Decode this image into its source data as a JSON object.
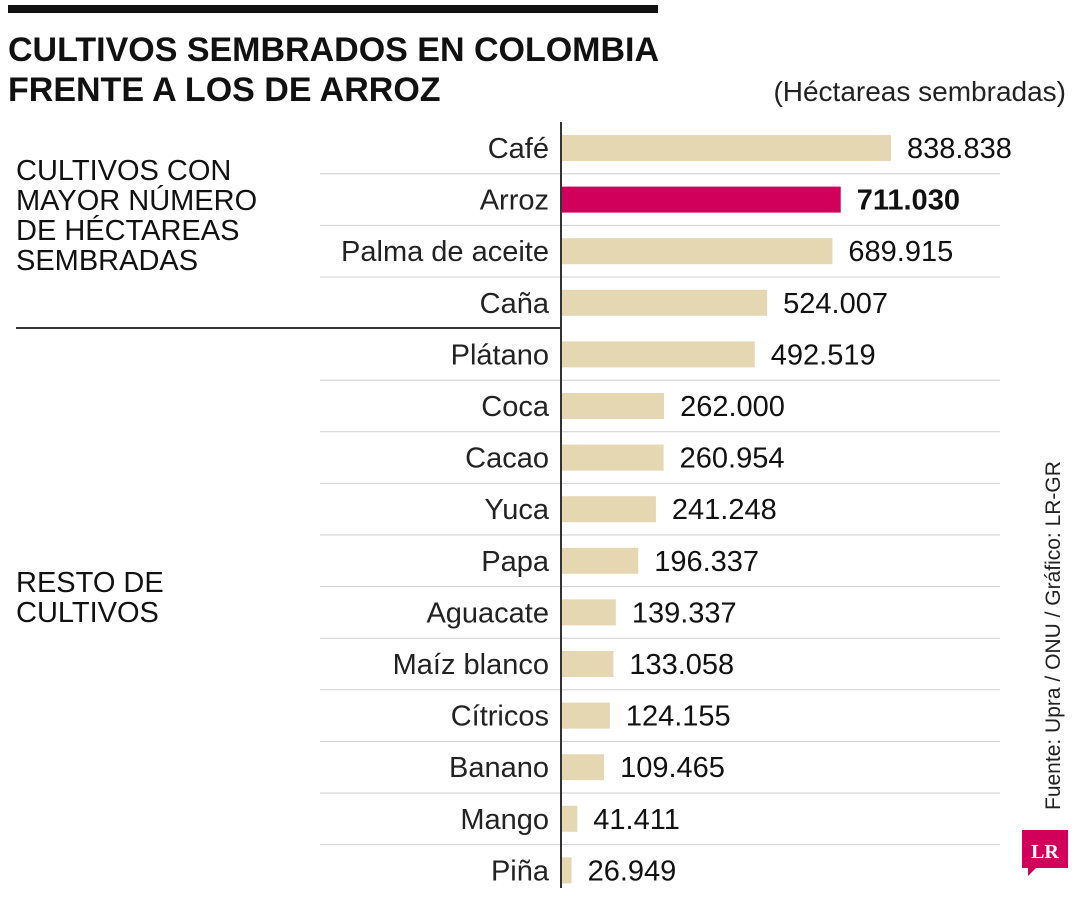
{
  "header": {
    "title_line1": "CULTIVOS SEMBRADOS EN COLOMBIA",
    "title_line2": "FRENTE A LOS DE ARROZ",
    "units": "(Héctareas sembradas)"
  },
  "groups": {
    "top_label": "CULTIVOS CON\nMAYOR NÚMERO\nDE HÉCTAREAS\nSEMBRADAS",
    "rest_label": "RESTO DE\nCULTIVOS"
  },
  "footer": {
    "source": "Fuente: Upra / ONU / Gráfico: LR-GR",
    "logo_text": "LR"
  },
  "colors": {
    "bar": "#e6d7b3",
    "highlight": "#d1005b",
    "logo": "#d1005b"
  },
  "chart_data": {
    "type": "bar",
    "orientation": "horizontal",
    "categories": [
      "Café",
      "Arroz",
      "Palma de aceite",
      "Caña",
      "Plátano",
      "Coca",
      "Cacao",
      "Yuca",
      "Papa",
      "Aguacate",
      "Maíz blanco",
      "Cítricos",
      "Banano",
      "Mango",
      "Piña"
    ],
    "values": [
      838838,
      711030,
      689915,
      524007,
      492519,
      262000,
      260954,
      241248,
      196337,
      139337,
      133058,
      124155,
      109465,
      41411,
      26949
    ],
    "value_labels": [
      "838.838",
      "711.030",
      "689.915",
      "524.007",
      "492.519",
      "262.000",
      "260.954",
      "241.248",
      "196.337",
      "139.337",
      "133.058",
      "124.155",
      "109.465",
      "41.411",
      "26.949"
    ],
    "highlight": "Arroz",
    "groups": [
      {
        "name": "CULTIVOS CON MAYOR NÚMERO DE HÉCTAREAS SEMBRADAS",
        "categories": [
          "Café",
          "Arroz",
          "Palma de aceite",
          "Caña"
        ]
      },
      {
        "name": "RESTO DE CULTIVOS",
        "categories": [
          "Plátano",
          "Coca",
          "Cacao",
          "Yuca",
          "Papa",
          "Aguacate",
          "Maíz blanco",
          "Cítricos",
          "Banano",
          "Mango",
          "Piña"
        ]
      }
    ],
    "xlim": [
      0,
      838838
    ],
    "grid": false,
    "legend": "none"
  }
}
